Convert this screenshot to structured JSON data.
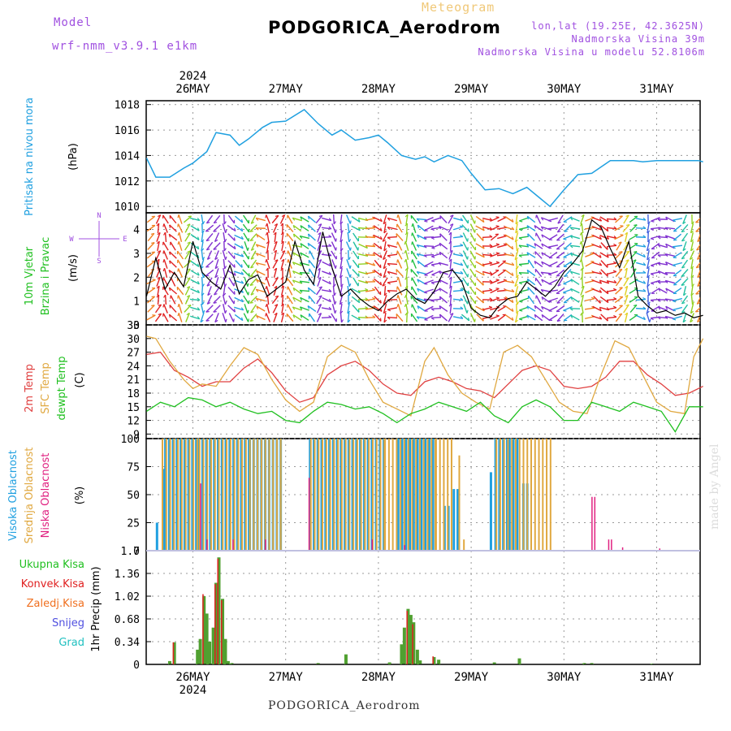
{
  "header": {
    "model_label": "Model",
    "model_name": "wrf-nmm_v3.9.1 e1km",
    "station": "PODGORICA_Aerodrom",
    "meteogram": "Meteogram",
    "lonlat": "lon,lat (19.25E, 42.3625N)",
    "elevation": "Nadmorska Visina 39m",
    "model_elevation": "Nadmorska Visina u modelu 52.8106m"
  },
  "footer": {
    "station": "PODGORICA_Aerodrom",
    "watermark": "made by Angel"
  },
  "colors": {
    "pressure": "#20a0e0",
    "t2m": "#e04040",
    "sfc": "#e0a840",
    "dewpt": "#20c020",
    "high_cloud": "#20a0e0",
    "mid_cloud": "#e0a840",
    "low_cloud": "#e02080",
    "total_precip": "#50a030",
    "convective": "#e02020",
    "freezing": "#f07020",
    "snow": "#5050e0",
    "graupel": "#20c0c0"
  },
  "chart_data": [
    {
      "type": "line",
      "id": "pressure",
      "labels": [
        "Pritisak na nivou mora",
        "(hPa)"
      ],
      "ylim": [
        1009.5,
        1018.3
      ],
      "yticks": [
        1010,
        1012,
        1014,
        1016,
        1018
      ],
      "x_days": [
        "26MAY",
        "27MAY",
        "28MAY",
        "29MAY",
        "30MAY",
        "31MAY"
      ],
      "year": "2024",
      "x_range_days": [
        -0.5,
        5.5
      ],
      "series": [
        {
          "x": [
            -0.5,
            -0.4,
            -0.25,
            -0.1,
            0,
            0.15,
            0.25,
            0.4,
            0.5,
            0.6,
            0.75,
            0.85,
            1,
            1.2,
            1.35,
            1.5,
            1.6,
            1.75,
            1.9,
            2,
            2.1,
            2.25,
            2.4,
            2.5,
            2.6,
            2.75,
            2.9,
            3,
            3.15,
            3.3,
            3.45,
            3.6,
            3.75,
            3.85,
            4,
            4.15,
            4.3,
            4.5,
            4.6,
            4.75,
            4.85,
            5,
            5.15,
            5.3,
            5.45,
            5.5
          ],
          "y": [
            1013.8,
            1012.3,
            1012.3,
            1013,
            1013.4,
            1014.3,
            1015.8,
            1015.6,
            1014.8,
            1015.3,
            1016.2,
            1016.6,
            1016.7,
            1017.6,
            1016.5,
            1015.6,
            1016,
            1015.2,
            1015.4,
            1015.6,
            1015,
            1014,
            1013.7,
            1013.9,
            1013.5,
            1014,
            1013.6,
            1012.6,
            1011.3,
            1011.4,
            1011,
            1011.5,
            1010.6,
            1010,
            1011.3,
            1012.5,
            1012.6,
            1013.6,
            1013.6,
            1013.6,
            1013.5,
            1013.6,
            1013.6,
            1013.6,
            1013.6,
            1013.5
          ]
        }
      ]
    },
    {
      "type": "line",
      "id": "wind",
      "labels": [
        "10m Vjetar",
        "Brzina i Pravac",
        "(m/s)"
      ],
      "compass": [
        "N",
        "S",
        "W",
        "E"
      ],
      "ylim": [
        0,
        4.7
      ],
      "yticks": [
        0,
        1,
        2,
        3,
        4
      ],
      "series": [
        {
          "name": "speed",
          "x": [
            -0.5,
            -0.4,
            -0.3,
            -0.2,
            -0.1,
            0,
            0.1,
            0.2,
            0.3,
            0.4,
            0.5,
            0.6,
            0.7,
            0.8,
            0.9,
            1,
            1.1,
            1.2,
            1.3,
            1.4,
            1.5,
            1.6,
            1.7,
            1.8,
            1.9,
            2,
            2.1,
            2.2,
            2.3,
            2.4,
            2.5,
            2.6,
            2.7,
            2.8,
            2.9,
            3,
            3.1,
            3.2,
            3.3,
            3.4,
            3.5,
            3.6,
            3.7,
            3.8,
            3.9,
            4,
            4.1,
            4.2,
            4.3,
            4.4,
            4.5,
            4.6,
            4.7,
            4.8,
            4.9,
            5,
            5.1,
            5.2,
            5.3,
            5.4,
            5.5
          ],
          "y": [
            1.2,
            2.8,
            1.5,
            2.2,
            1.6,
            3.5,
            2.2,
            1.8,
            1.5,
            2.5,
            1.3,
            1.9,
            2.1,
            1.2,
            1.5,
            1.8,
            3.5,
            2.3,
            1.7,
            3.9,
            2.4,
            1.2,
            1.5,
            1.1,
            0.8,
            0.6,
            1,
            1.3,
            1.5,
            1.1,
            0.9,
            1.4,
            2.2,
            2.3,
            1.8,
            0.7,
            0.4,
            0.3,
            0.8,
            1.1,
            1.2,
            1.8,
            1.5,
            1.2,
            1.6,
            2.2,
            2.6,
            3.1,
            4.4,
            4.1,
            3.2,
            2.4,
            3.5,
            1.2,
            0.8,
            0.5,
            0.6,
            0.4,
            0.5,
            0.3,
            0.4
          ]
        }
      ]
    },
    {
      "type": "line",
      "id": "temperature",
      "labels": [
        "2m Temp",
        "SFC Temp",
        "dewpt Temp",
        "(C)"
      ],
      "ylim": [
        8,
        33
      ],
      "yticks": [
        9,
        12,
        15,
        18,
        21,
        24,
        27,
        30,
        33
      ],
      "series": [
        {
          "name": "2m Temp",
          "x": [
            -0.5,
            -0.35,
            -0.2,
            -0.05,
            0.1,
            0.25,
            0.4,
            0.55,
            0.7,
            0.85,
            1,
            1.15,
            1.3,
            1.45,
            1.6,
            1.75,
            1.9,
            2.05,
            2.2,
            2.35,
            2.5,
            2.65,
            2.8,
            2.95,
            3.1,
            3.25,
            3.4,
            3.55,
            3.7,
            3.85,
            4,
            4.15,
            4.3,
            4.45,
            4.6,
            4.75,
            4.9,
            5.05,
            5.2,
            5.35,
            5.5
          ],
          "y": [
            26.5,
            27,
            23,
            21.5,
            19.5,
            20.5,
            20.5,
            23.5,
            25.5,
            22.5,
            18.5,
            16,
            17,
            22,
            24,
            25,
            23,
            20,
            18,
            17.5,
            20.5,
            21.5,
            20.5,
            19,
            18.5,
            17,
            20,
            23,
            24,
            23,
            19.5,
            19,
            19.5,
            21.5,
            25,
            25,
            22,
            20,
            17.5,
            18,
            19.5
          ]
        },
        {
          "name": "SFC Temp",
          "x": [
            -0.5,
            -0.4,
            -0.25,
            -0.1,
            0,
            0.1,
            0.25,
            0.4,
            0.55,
            0.7,
            0.85,
            1,
            1.15,
            1.3,
            1.45,
            1.6,
            1.75,
            1.9,
            2.05,
            2.2,
            2.35,
            2.5,
            2.6,
            2.75,
            2.9,
            3.05,
            3.2,
            3.35,
            3.5,
            3.65,
            3.8,
            3.95,
            4.1,
            4.25,
            4.4,
            4.55,
            4.7,
            4.85,
            5,
            5.15,
            5.3,
            5.4,
            5.5
          ],
          "y": [
            30.5,
            30,
            25,
            21,
            19,
            20,
            19.5,
            24,
            28,
            26.5,
            21,
            16.5,
            14,
            16,
            26,
            28.5,
            27,
            21,
            16,
            14.5,
            13,
            25,
            28,
            22,
            18,
            16,
            14.5,
            27,
            28.5,
            26,
            21,
            16,
            14,
            13.5,
            22,
            29.5,
            28,
            22,
            16,
            14,
            13.5,
            26,
            30
          ]
        },
        {
          "name": "dewpt Temp",
          "x": [
            -0.5,
            -0.35,
            -0.2,
            -0.05,
            0.1,
            0.25,
            0.4,
            0.55,
            0.7,
            0.85,
            1,
            1.15,
            1.3,
            1.45,
            1.6,
            1.75,
            1.9,
            2.05,
            2.2,
            2.35,
            2.5,
            2.65,
            2.8,
            2.95,
            3.1,
            3.25,
            3.4,
            3.55,
            3.7,
            3.85,
            4,
            4.15,
            4.3,
            4.45,
            4.6,
            4.75,
            4.9,
            5.05,
            5.2,
            5.35,
            5.5
          ],
          "y": [
            14,
            16,
            15,
            17,
            16.5,
            15,
            16,
            14.5,
            13.5,
            14,
            12,
            11.5,
            14,
            16,
            15.5,
            14.5,
            15,
            13.5,
            11.5,
            13.5,
            14.5,
            16,
            15,
            14,
            16,
            13,
            11.5,
            15,
            16.5,
            15,
            12,
            12,
            16,
            15,
            14,
            16,
            15,
            14,
            9.5,
            15,
            15
          ]
        }
      ]
    },
    {
      "type": "bar",
      "id": "cloud",
      "labels": [
        "Visoka Oblacnost",
        "Srednja Oblacnost",
        "Niska Oblacnost",
        "(%)"
      ],
      "ylim": [
        0,
        100
      ],
      "yticks": [
        0,
        25,
        50,
        75,
        100
      ],
      "bar_spacing_days": 0.0417,
      "series": [
        {
          "name": "Visoka Oblacnost",
          "segments": [
            [
              -0.4,
              -0.4,
              25
            ],
            [
              -0.33,
              -0.32,
              73
            ],
            [
              -0.31,
              0.05,
              100
            ],
            [
              0.05,
              0.6,
              100
            ],
            [
              0.6,
              0.95,
              100
            ],
            [
              1.25,
              1.92,
              100
            ],
            [
              1.92,
              2.05,
              100
            ],
            [
              2.2,
              2.6,
              100
            ],
            [
              2.7,
              2.75,
              40
            ],
            [
              2.8,
              2.85,
              55
            ],
            [
              3.2,
              3.22,
              70
            ],
            [
              3.25,
              3.4,
              100
            ],
            [
              3.4,
              3.5,
              100
            ],
            [
              3.55,
              3.6,
              60
            ]
          ]
        },
        {
          "name": "Srednja Oblacnost",
          "segments": [
            [
              -0.35,
              0.05,
              100
            ],
            [
              0.05,
              0.95,
              100
            ],
            [
              1.25,
              2.05,
              100
            ],
            [
              2.05,
              2.6,
              100
            ],
            [
              2.6,
              2.8,
              100
            ],
            [
              2.85,
              2.88,
              85
            ],
            [
              2.9,
              2.92,
              10
            ],
            [
              3.25,
              3.85,
              100
            ]
          ]
        },
        {
          "name": "Niska Oblacnost",
          "segments": [
            [
              0.05,
              0.05,
              60
            ],
            [
              0.12,
              0.12,
              10
            ],
            [
              0.4,
              0.4,
              10
            ],
            [
              0.75,
              0.75,
              10
            ],
            [
              1.22,
              1.22,
              65
            ],
            [
              1.9,
              1.9,
              10
            ],
            [
              2.25,
              2.25,
              5
            ],
            [
              4.27,
              4.27,
              48
            ],
            [
              4.3,
              4.3,
              48
            ],
            [
              4.45,
              4.45,
              10
            ],
            [
              4.48,
              4.48,
              10
            ],
            [
              4.6,
              4.6,
              3
            ],
            [
              5.0,
              5.0,
              2
            ]
          ]
        }
      ]
    },
    {
      "type": "bar",
      "id": "precip",
      "labels": [
        "1hr Precip (mm)"
      ],
      "legend": [
        "Ukupna Kisa",
        "Konvek.Kisa",
        "Zaledj.Kisa",
        "Snijeg",
        "Grad"
      ],
      "ylim": [
        0,
        1.7
      ],
      "yticks": [
        0,
        0.34,
        0.68,
        1.02,
        1.36,
        1.7
      ],
      "series": [
        {
          "name": "Ukupna Kisa",
          "x": [
            -0.25,
            -0.2,
            0.05,
            0.08,
            0.12,
            0.15,
            0.18,
            0.22,
            0.25,
            0.28,
            0.32,
            0.35,
            0.38,
            0.42,
            1.35,
            1.65,
            2.12,
            2.25,
            2.28,
            2.32,
            2.35,
            2.38,
            2.42,
            2.45,
            2.6,
            2.65,
            3.25,
            3.52,
            4.22,
            4.3,
            4.95
          ],
          "y": [
            0.05,
            0.33,
            0.22,
            0.38,
            1.02,
            0.76,
            0.34,
            0.55,
            1.22,
            1.6,
            0.98,
            0.38,
            0.05,
            0.02,
            0.02,
            0.15,
            0.03,
            0.3,
            0.55,
            0.83,
            0.74,
            0.63,
            0.22,
            0.06,
            0.11,
            0.07,
            0.03,
            0.09,
            0.02,
            0.02,
            0.01
          ]
        },
        {
          "name": "Konvek.Kisa",
          "x": [
            -0.2,
            0.12,
            0.25,
            0.28,
            0.32,
            2.32,
            2.38,
            2.6
          ],
          "y": [
            0.33,
            1.05,
            1.2,
            1.58,
            0.96,
            0.8,
            0.6,
            0.12
          ]
        }
      ]
    }
  ]
}
